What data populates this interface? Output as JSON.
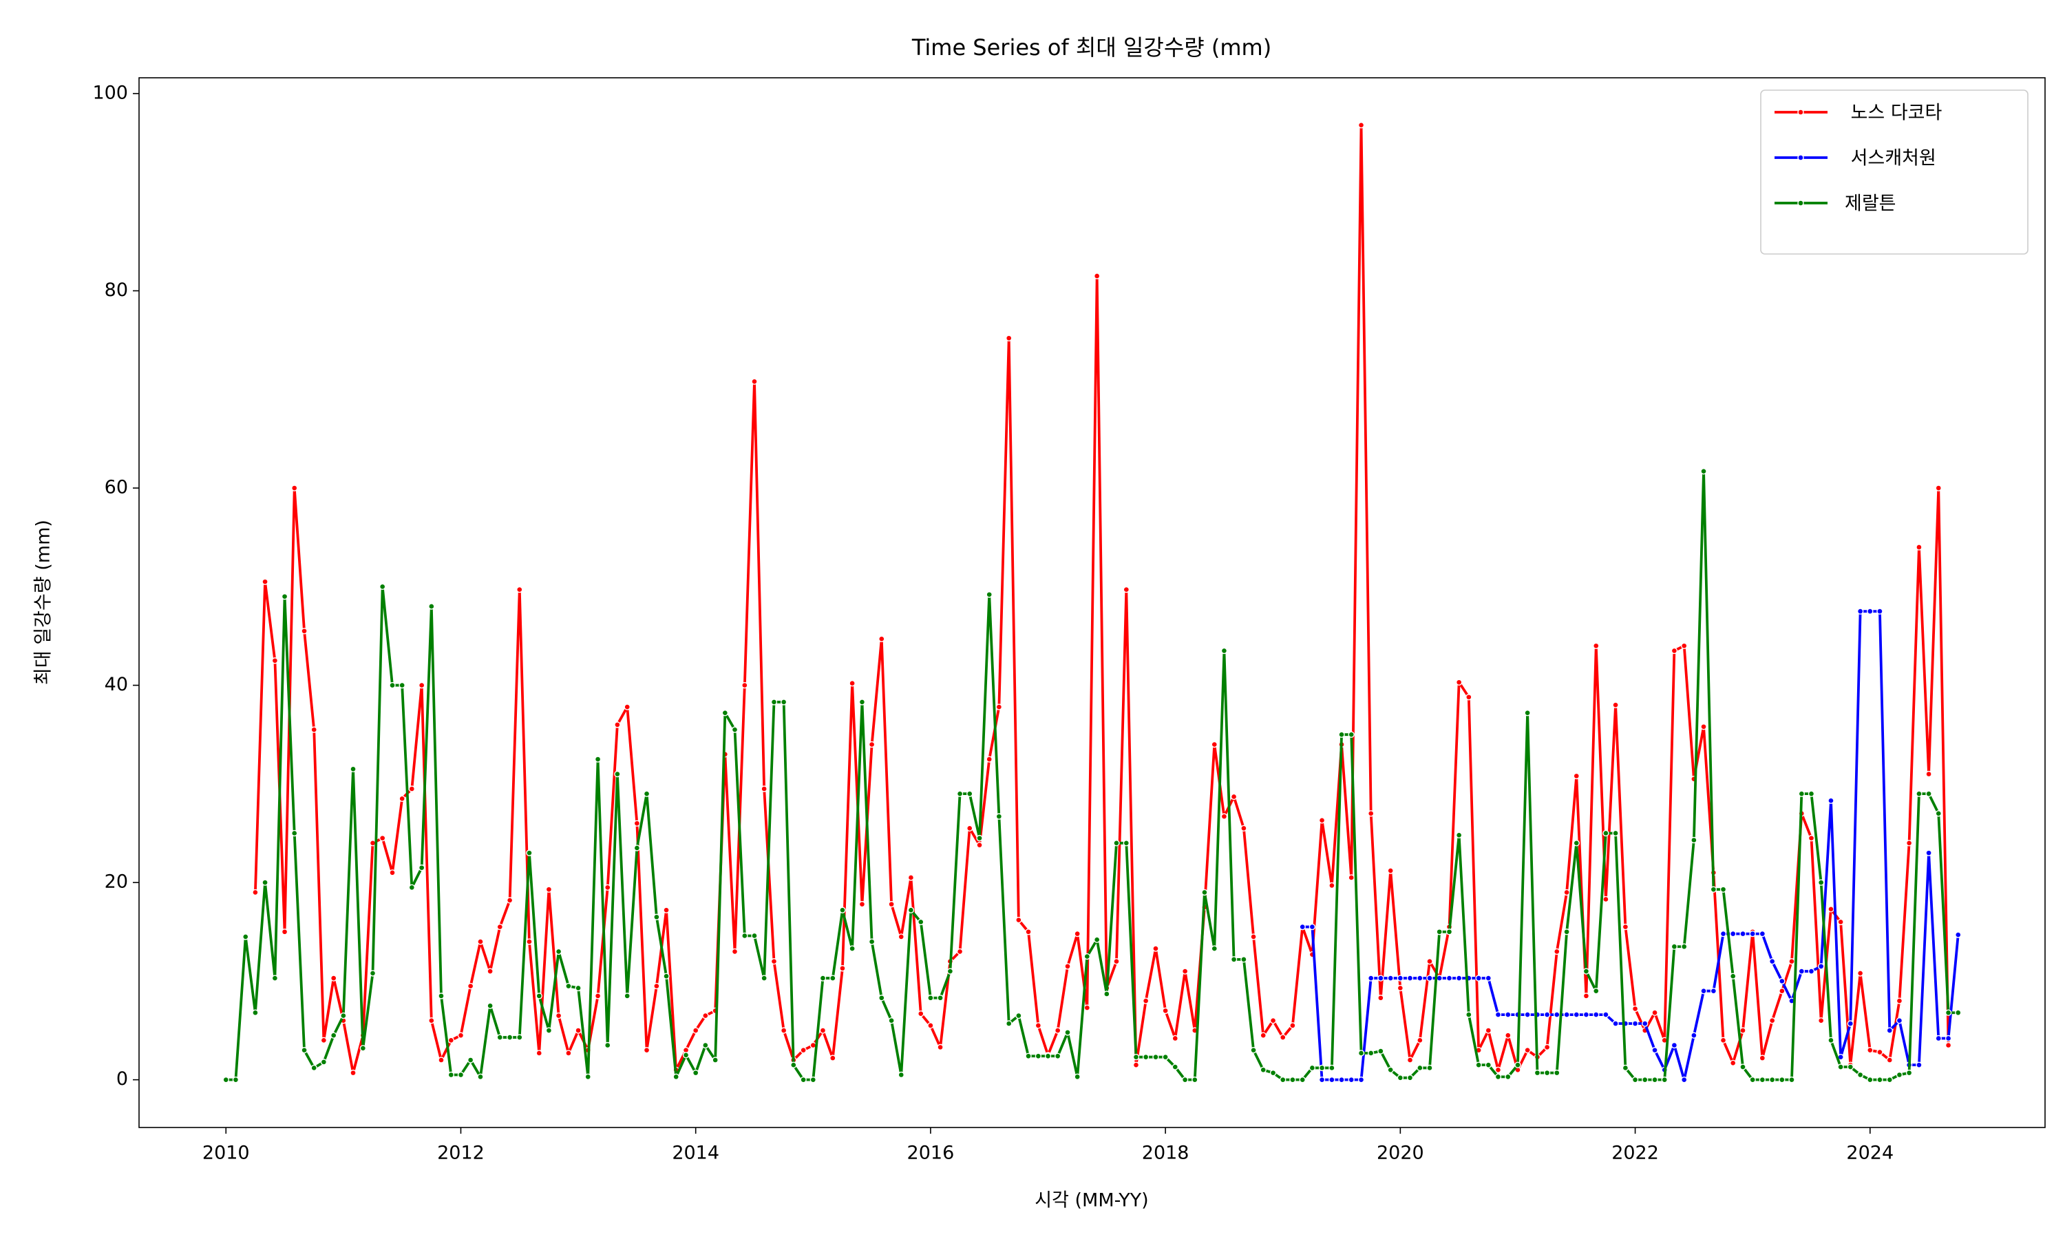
{
  "chart_data": {
    "type": "line",
    "title": "Time Series of 최대 일강수량 (mm)",
    "xlabel": "시각 (MM-YY)",
    "ylabel": "최대 일강수량 (mm)",
    "x": [
      2010,
      2010.083,
      2010.167,
      2010.25,
      2010.333,
      2010.417,
      2010.5,
      2010.583,
      2010.667,
      2010.75,
      2010.833,
      2010.917,
      2011,
      2011.083,
      2011.167,
      2011.25,
      2011.333,
      2011.417,
      2011.5,
      2011.583,
      2011.667,
      2011.75,
      2011.833,
      2011.917,
      2012,
      2012.083,
      2012.167,
      2012.25,
      2012.333,
      2012.417,
      2012.5,
      2012.583,
      2012.667,
      2012.75,
      2012.833,
      2012.917,
      2013,
      2013.083,
      2013.167,
      2013.25,
      2013.333,
      2013.417,
      2013.5,
      2013.583,
      2013.667,
      2013.75,
      2013.833,
      2013.917,
      2014,
      2014.083,
      2014.167,
      2014.25,
      2014.333,
      2014.417,
      2014.5,
      2014.583,
      2014.667,
      2014.75,
      2014.833,
      2014.917,
      2015,
      2015.083,
      2015.167,
      2015.25,
      2015.333,
      2015.417,
      2015.5,
      2015.583,
      2015.667,
      2015.75,
      2015.833,
      2015.917,
      2016,
      2016.083,
      2016.167,
      2016.25,
      2016.333,
      2016.417,
      2016.5,
      2016.583,
      2016.667,
      2016.75,
      2016.833,
      2016.917,
      2017,
      2017.083,
      2017.167,
      2017.25,
      2017.333,
      2017.417,
      2017.5,
      2017.583,
      2017.667,
      2017.75,
      2017.833,
      2017.917,
      2018,
      2018.083,
      2018.167,
      2018.25,
      2018.333,
      2018.417,
      2018.5,
      2018.583,
      2018.667,
      2018.75,
      2018.833,
      2018.917,
      2019,
      2019.083,
      2019.167,
      2019.25,
      2019.333,
      2019.417,
      2019.5,
      2019.583,
      2019.667,
      2019.75,
      2019.833,
      2019.917,
      2020,
      2020.083,
      2020.167,
      2020.25,
      2020.333,
      2020.417,
      2020.5,
      2020.583,
      2020.667,
      2020.75,
      2020.833,
      2020.917,
      2021,
      2021.083,
      2021.167,
      2021.25,
      2021.333,
      2021.417,
      2021.5,
      2021.583,
      2021.667,
      2021.75,
      2021.833,
      2021.917,
      2022,
      2022.083,
      2022.167,
      2022.25,
      2022.333,
      2022.417,
      2022.5,
      2022.583,
      2022.667,
      2022.75,
      2022.833,
      2022.917,
      2023,
      2023.083,
      2023.167,
      2023.25,
      2023.333,
      2023.417,
      2023.5,
      2023.583,
      2023.667,
      2023.75,
      2023.833,
      2023.917,
      2024,
      2024.083,
      2024.167,
      2024.25,
      2024.333,
      2024.417,
      2024.5,
      2024.583,
      2024.667,
      2024.75
    ],
    "series": [
      {
        "name": " 노스 다코타",
        "color": "#ff0000",
        "values": [
          null,
          null,
          null,
          19,
          50.5,
          42.5,
          15,
          60,
          45.5,
          35.5,
          4,
          10.3,
          6,
          0.7,
          4.5,
          24,
          24.5,
          21,
          28.5,
          29.5,
          40,
          6,
          2,
          4,
          4.5,
          9.5,
          14,
          11,
          15.5,
          18.2,
          49.7,
          14,
          2.7,
          19.3,
          6.5,
          2.7,
          5,
          3,
          8.5,
          19.5,
          36,
          37.8,
          26,
          3,
          9.5,
          17.2,
          1,
          3,
          5,
          6.5,
          7,
          33,
          13,
          40,
          70.8,
          29.5,
          12,
          5,
          2,
          3,
          3.5,
          5,
          2.2,
          11.3,
          40.2,
          17.8,
          34,
          44.7,
          17.8,
          14.5,
          20.5,
          6.7,
          5.5,
          3.3,
          12,
          13,
          25.5,
          23.8,
          32.5,
          37.8,
          75.2,
          16.2,
          15,
          5.5,
          2.5,
          5,
          11.5,
          14.8,
          7.3,
          81.5,
          9.3,
          12,
          49.7,
          1.5,
          8,
          13.3,
          7,
          4.2,
          11,
          5,
          17.5,
          34,
          26.7,
          28.7,
          25.5,
          14.5,
          4.5,
          6,
          4.3,
          5.5,
          15.5,
          12.7,
          26.3,
          19.7,
          34,
          20.5,
          96.8,
          27,
          8.3,
          21.2,
          9.3,
          2,
          4,
          12,
          10.3,
          15.5,
          40.3,
          38.8,
          3,
          5,
          1,
          4.5,
          1,
          3,
          2.3,
          3.3,
          13,
          19,
          30.8,
          8.5,
          44,
          18.3,
          38,
          15.5,
          7.2,
          5,
          6.8,
          4,
          43.5,
          44,
          30.5,
          35.8,
          21,
          4,
          1.7,
          5,
          15,
          2.2,
          6,
          9,
          12,
          27,
          24.5,
          6,
          17.3,
          16,
          1.5,
          10.8,
          3,
          2.8,
          2,
          8,
          24,
          54,
          31,
          60,
          3.5,
          null
        ]
      },
      {
        "name": " 서스캐처원",
        "color": "#0000ff",
        "values": [
          null,
          null,
          null,
          null,
          null,
          null,
          null,
          null,
          null,
          null,
          null,
          null,
          null,
          null,
          null,
          null,
          null,
          null,
          null,
          null,
          null,
          null,
          null,
          null,
          null,
          null,
          null,
          null,
          null,
          null,
          null,
          null,
          null,
          null,
          null,
          null,
          null,
          null,
          null,
          null,
          null,
          null,
          null,
          null,
          null,
          null,
          null,
          null,
          null,
          null,
          null,
          null,
          null,
          null,
          null,
          null,
          null,
          null,
          null,
          null,
          null,
          null,
          null,
          null,
          null,
          null,
          null,
          null,
          null,
          null,
          null,
          null,
          null,
          null,
          null,
          null,
          null,
          null,
          null,
          null,
          null,
          null,
          null,
          null,
          null,
          null,
          null,
          null,
          null,
          null,
          null,
          null,
          null,
          null,
          null,
          null,
          null,
          null,
          null,
          null,
          null,
          null,
          null,
          null,
          null,
          null,
          null,
          null,
          null,
          null,
          15.5,
          15.5,
          0,
          0,
          0,
          0,
          0,
          10.3,
          10.3,
          10.3,
          10.3,
          10.3,
          10.3,
          10.3,
          10.3,
          10.3,
          10.3,
          10.3,
          10.3,
          10.3,
          6.6,
          6.6,
          6.6,
          6.6,
          6.6,
          6.6,
          6.6,
          6.6,
          6.6,
          6.6,
          6.6,
          6.6,
          5.7,
          5.7,
          5.7,
          5.7,
          3,
          1,
          3.5,
          0,
          4.5,
          9,
          9,
          14.8,
          14.8,
          14.8,
          14.8,
          14.8,
          12,
          10,
          8,
          11,
          11,
          11.5,
          28.3,
          2.3,
          5.7,
          47.5,
          47.5,
          47.5,
          5,
          6,
          1.5,
          1.5,
          23,
          4.2,
          4.2,
          14.7
        ]
      },
      {
        "name": "제랄튼",
        "color": "#008000",
        "values": [
          0,
          0,
          14.5,
          6.8,
          20,
          10.3,
          49,
          25,
          3,
          1.2,
          1.8,
          4.5,
          6.5,
          31.5,
          3.2,
          10.8,
          50,
          40,
          40,
          19.5,
          21.5,
          48,
          8.5,
          0.5,
          0.5,
          2,
          0.3,
          7.5,
          4.3,
          4.3,
          4.3,
          23,
          8.5,
          5,
          13,
          9.5,
          9.3,
          0.3,
          32.5,
          3.5,
          31,
          8.5,
          23.5,
          29,
          16.5,
          10.5,
          0.3,
          2.5,
          0.7,
          3.5,
          2,
          37.2,
          35.5,
          14.6,
          14.6,
          10.3,
          38.3,
          38.3,
          1.5,
          0,
          0,
          10.3,
          10.3,
          17.2,
          13.3,
          38.3,
          14,
          8.3,
          6,
          0.5,
          17.2,
          16,
          8.3,
          8.3,
          11,
          29,
          29,
          24.5,
          49.2,
          26.7,
          5.7,
          6.5,
          2.4,
          2.4,
          2.4,
          2.4,
          4.8,
          0.3,
          12.5,
          14.2,
          8.7,
          24,
          24,
          2.3,
          2.3,
          2.3,
          2.3,
          1.3,
          0,
          0,
          19,
          13.3,
          43.5,
          12.2,
          12.2,
          3,
          1,
          0.7,
          0,
          0,
          0,
          1.2,
          1.2,
          1.2,
          35,
          35,
          2.7,
          2.7,
          2.9,
          1,
          0.2,
          0.2,
          1.2,
          1.2,
          15,
          15,
          24.8,
          6.6,
          1.5,
          1.5,
          0.3,
          0.3,
          1.5,
          37.2,
          0.7,
          0.7,
          0.7,
          15,
          24,
          11,
          9,
          25,
          25,
          1.2,
          0,
          0,
          0,
          0,
          13.5,
          13.5,
          24.3,
          61.7,
          19.3,
          19.3,
          10.5,
          1.3,
          0,
          0,
          0,
          0,
          0,
          29,
          29,
          20,
          4,
          1.3,
          1.3,
          0.5,
          0,
          0,
          0,
          0.5,
          0.7,
          29,
          29,
          27,
          6.8,
          6.8
        ]
      }
    ],
    "xlim": [
      2009.26,
      2025.49
    ],
    "xticks": [
      2010,
      2012,
      2014,
      2016,
      2018,
      2020,
      2022,
      2024
    ],
    "ylim": [
      -4.84,
      101.6
    ],
    "yticks": [
      0,
      20,
      40,
      60,
      80,
      100
    ],
    "grid": false,
    "legend": "upper right"
  }
}
